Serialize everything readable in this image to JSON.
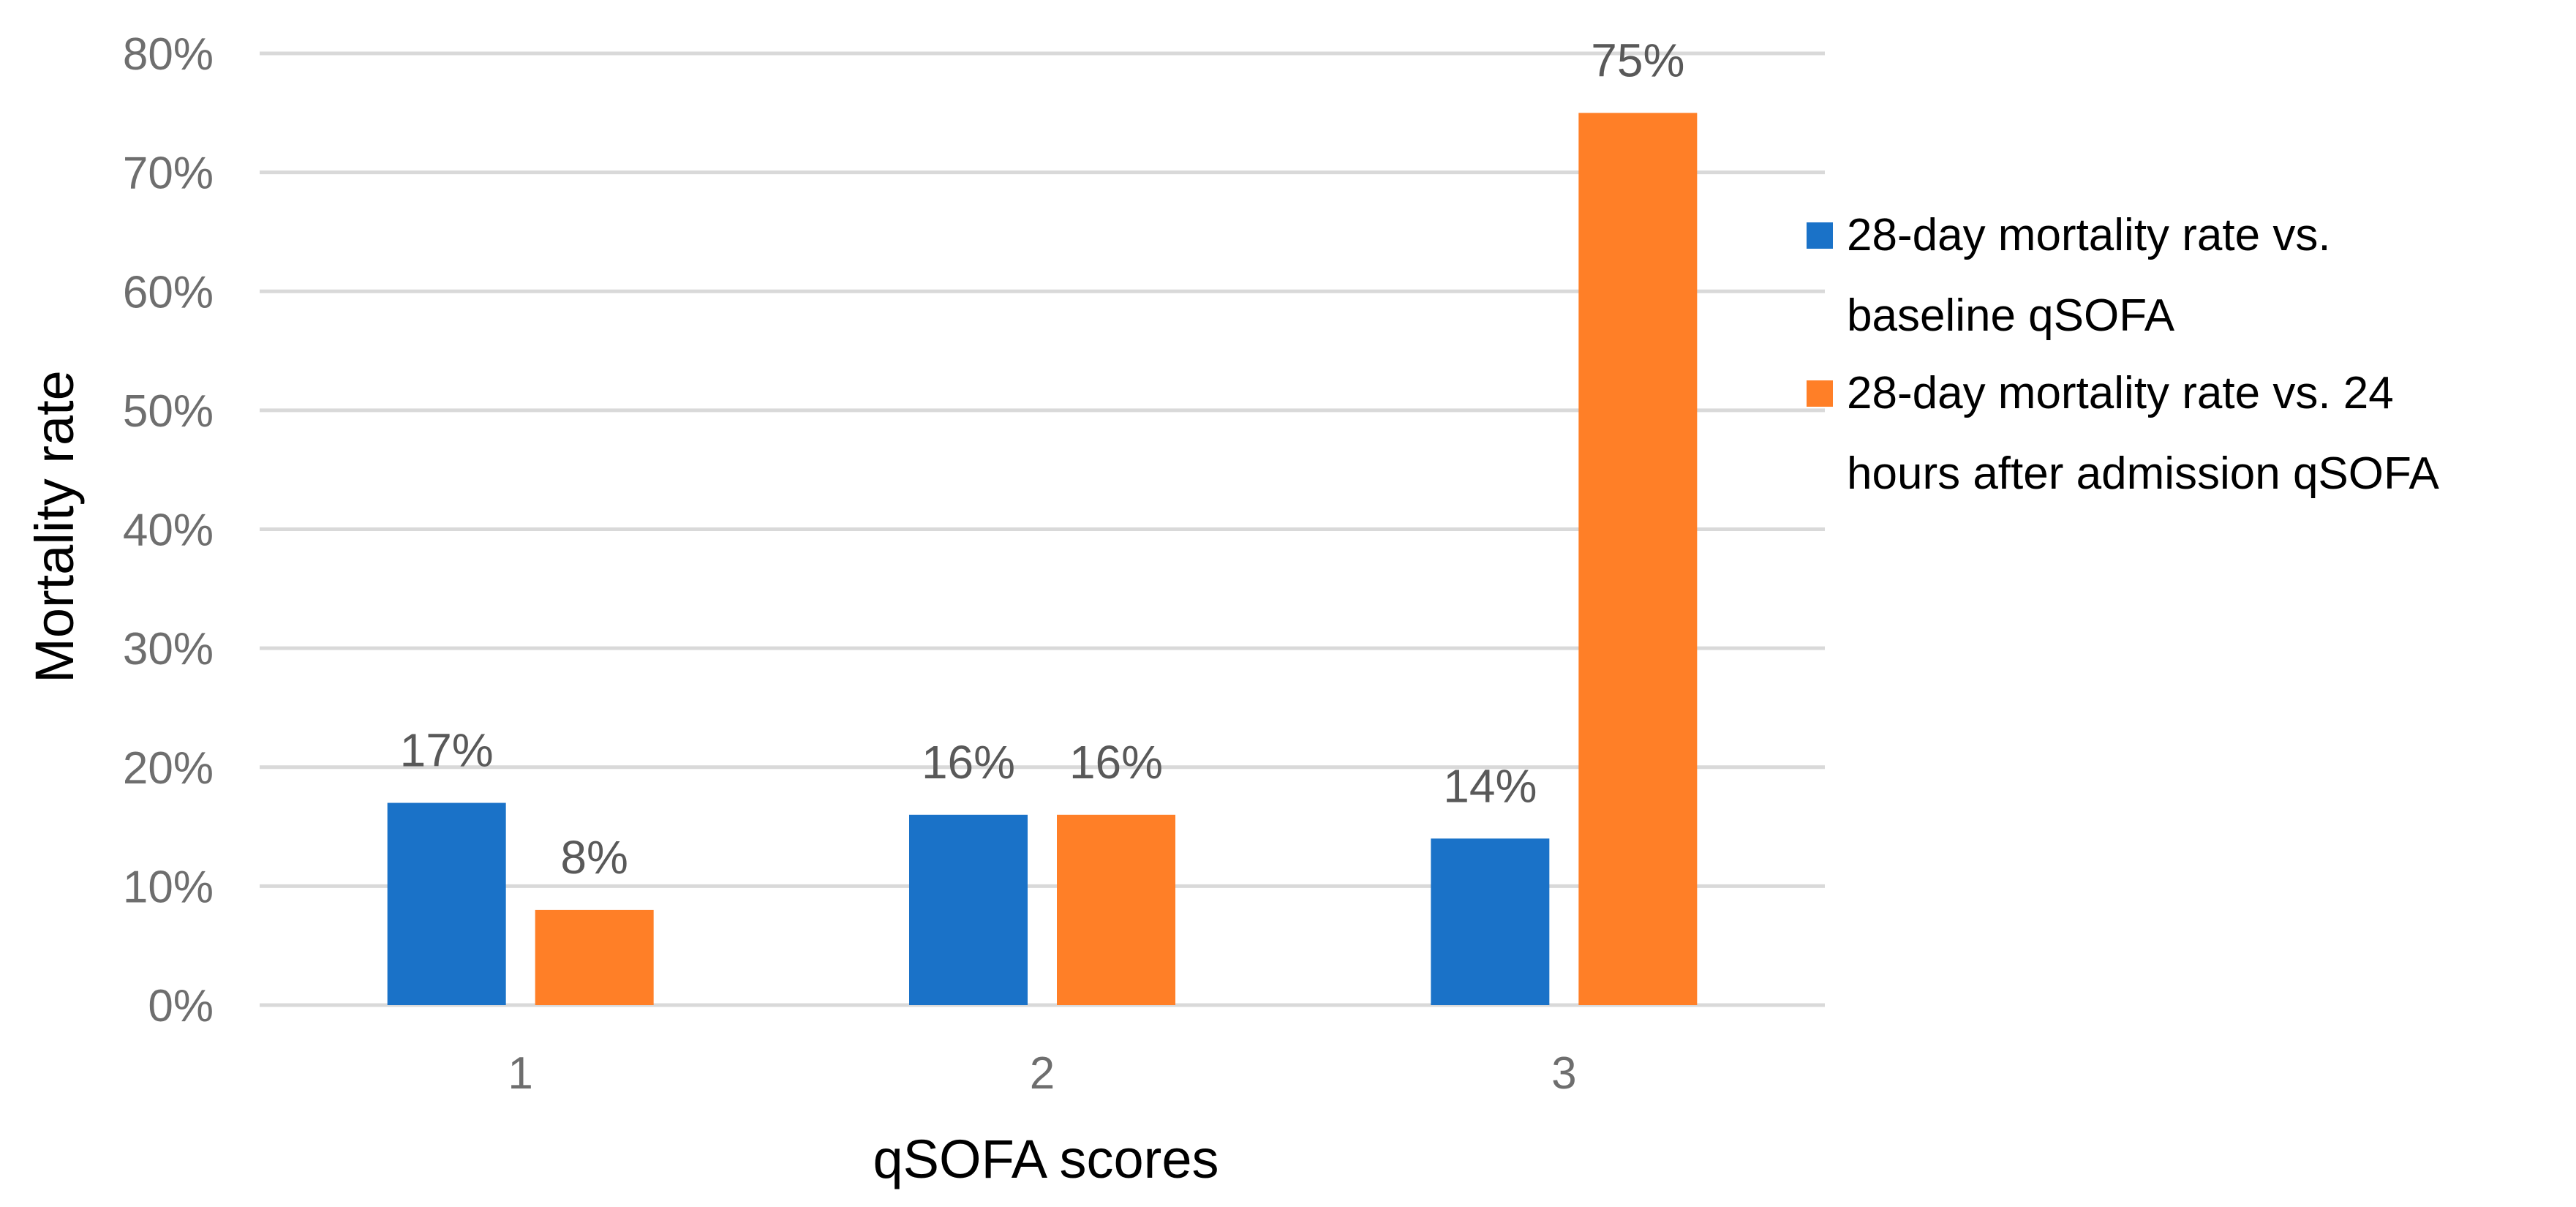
{
  "chart_data": {
    "type": "bar",
    "title": "",
    "xlabel": "qSOFA scores",
    "ylabel": "Mortality rate",
    "categories": [
      "1",
      "2",
      "3"
    ],
    "series": [
      {
        "name_lines": [
          "28-day mortality rate vs.",
          "baseline qSOFA"
        ],
        "values": [
          17,
          16,
          14
        ],
        "labels": [
          "17%",
          "16%",
          "14%"
        ],
        "color": "#1a72c8"
      },
      {
        "name_lines": [
          "28-day mortality rate vs. 24",
          "hours after admission qSOFA"
        ],
        "values": [
          8,
          16,
          75
        ],
        "labels": [
          "8%",
          "16%",
          "75%"
        ],
        "color": "#ff7f27"
      }
    ],
    "ylim": [
      0,
      80
    ],
    "yticks": [
      "0%",
      "10%",
      "20%",
      "30%",
      "40%",
      "50%",
      "60%",
      "70%",
      "80%"
    ],
    "grid": true,
    "legend_position": "right",
    "grid_color": "#d9d9d9"
  }
}
